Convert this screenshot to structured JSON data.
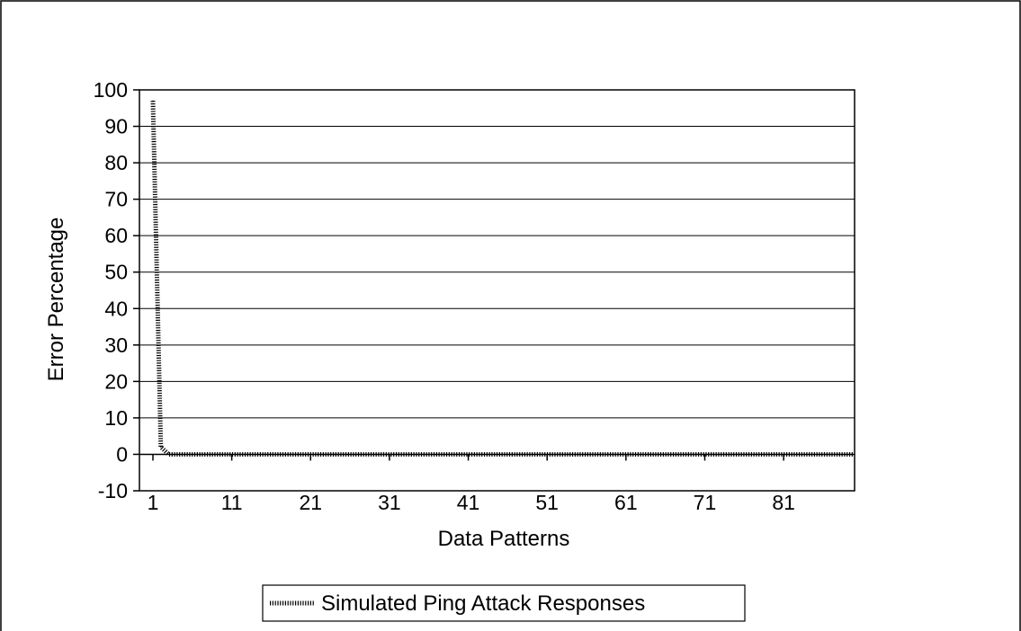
{
  "chart_data": {
    "type": "line",
    "title": "",
    "xlabel": "Data Patterns",
    "ylabel": "Error Percentage",
    "ylim": [
      -10,
      100
    ],
    "yticks": [
      -10,
      0,
      10,
      20,
      30,
      40,
      50,
      60,
      70,
      80,
      90,
      100
    ],
    "xlim": [
      1,
      90
    ],
    "xticks": [
      1,
      11,
      21,
      31,
      41,
      51,
      61,
      71,
      81
    ],
    "grid": "horizontal",
    "legend_position": "bottom",
    "colors": {
      "line": "#000000",
      "grid": "#000000",
      "background": "#ffffff"
    },
    "series": [
      {
        "name": "Simulated Ping Attack Responses",
        "x": [
          1,
          2,
          3,
          4,
          5,
          6,
          7,
          8,
          9,
          10,
          11,
          12,
          13,
          14,
          15,
          16,
          17,
          18,
          19,
          20,
          21,
          22,
          23,
          24,
          25,
          26,
          27,
          28,
          29,
          30,
          31,
          32,
          33,
          34,
          35,
          36,
          37,
          38,
          39,
          40,
          41,
          42,
          43,
          44,
          45,
          46,
          47,
          48,
          49,
          50,
          51,
          52,
          53,
          54,
          55,
          56,
          57,
          58,
          59,
          60,
          61,
          62,
          63,
          64,
          65,
          66,
          67,
          68,
          69,
          70,
          71,
          72,
          73,
          74,
          75,
          76,
          77,
          78,
          79,
          80,
          81,
          82,
          83,
          84,
          85,
          86,
          87,
          88,
          89,
          90
        ],
        "values": [
          97,
          2,
          0,
          0,
          0,
          0,
          0,
          0,
          0,
          0,
          0,
          0,
          0,
          0,
          0,
          0,
          0,
          0,
          0,
          0,
          0,
          0,
          0,
          0,
          0,
          0,
          0,
          0,
          0,
          0,
          0,
          0,
          0,
          0,
          0,
          0,
          0,
          0,
          0,
          0,
          0,
          0,
          0,
          0,
          0,
          0,
          0,
          0,
          0,
          0,
          0,
          0,
          0,
          0,
          0,
          0,
          0,
          0,
          0,
          0,
          0,
          0,
          0,
          0,
          0,
          0,
          0,
          0,
          0,
          0,
          0,
          0,
          0,
          0,
          0,
          0,
          0,
          0,
          0,
          0,
          0,
          0,
          0,
          0,
          0,
          0,
          0,
          0,
          0,
          0
        ]
      }
    ]
  }
}
